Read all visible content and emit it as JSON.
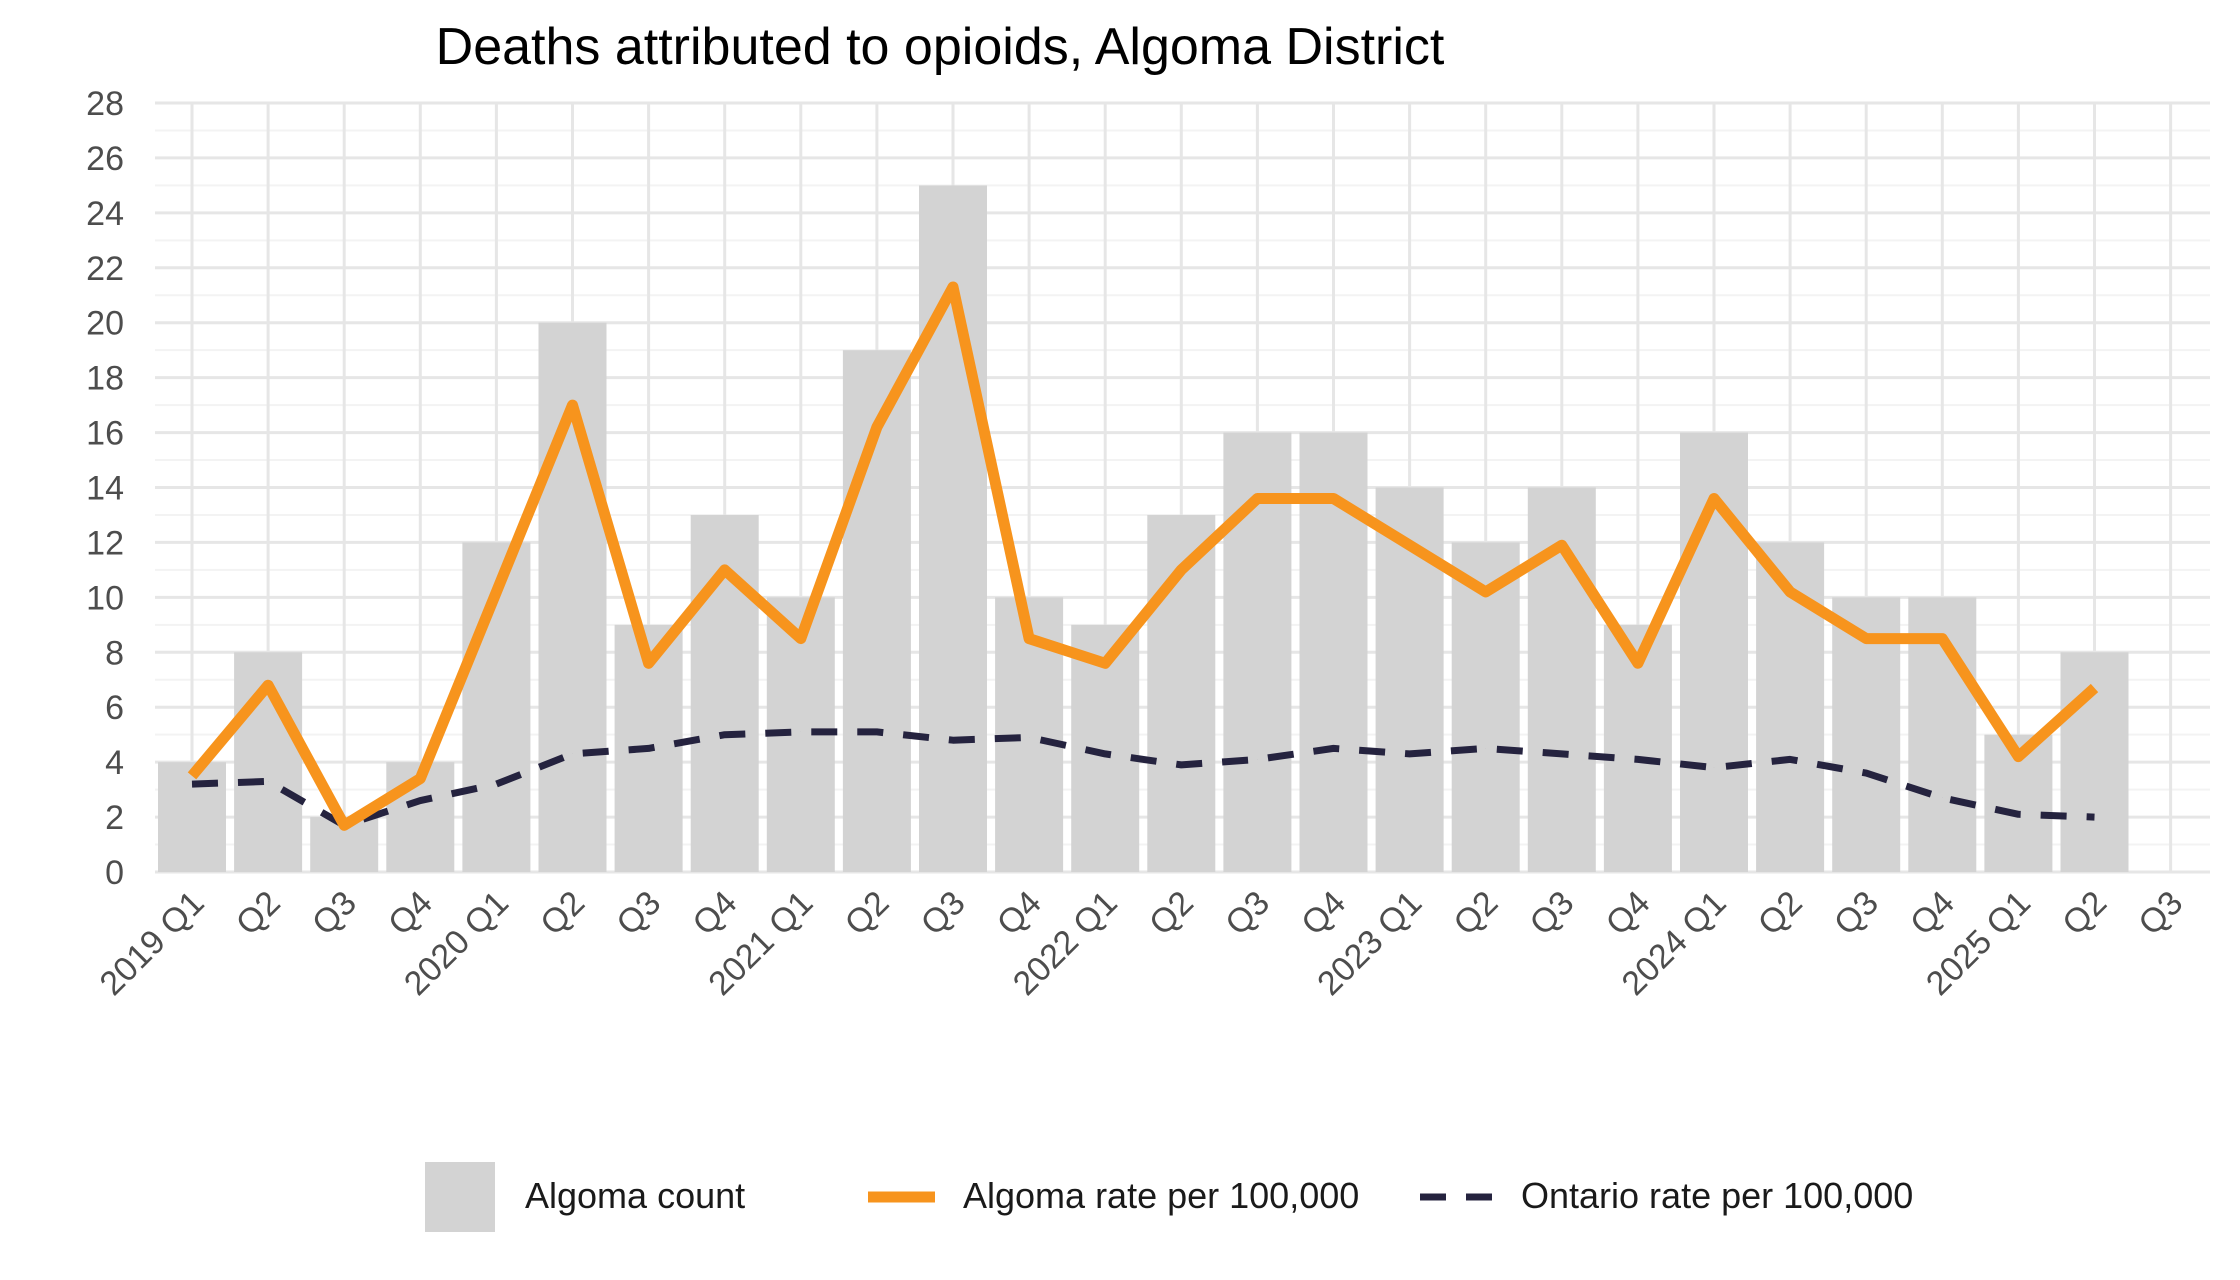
{
  "chart_data": {
    "type": "bar",
    "title": "Deaths attributed to opioids, Algoma District",
    "xlabel": "",
    "ylabel": "",
    "ylim": [
      0,
      28
    ],
    "yticks": [
      0,
      2,
      4,
      6,
      8,
      10,
      12,
      14,
      16,
      18,
      20,
      22,
      24,
      26,
      28
    ],
    "grid": true,
    "legend_position": "bottom",
    "categories": [
      "2019 Q1",
      "Q2",
      "Q3",
      "Q4",
      "2020 Q1",
      "Q2",
      "Q3",
      "Q4",
      "2021 Q1",
      "Q2",
      "Q3",
      "Q4",
      "2022 Q1",
      "Q2",
      "Q3",
      "Q4",
      "2023 Q1",
      "Q2",
      "Q3",
      "Q4",
      "2024 Q1",
      "Q2",
      "Q3",
      "Q4",
      "2025 Q1",
      "Q2",
      "Q3"
    ],
    "series": [
      {
        "name": "Algoma count",
        "kind": "bar",
        "color": "#d3d3d3",
        "values": [
          4,
          8,
          2,
          4,
          12,
          20,
          9,
          13,
          10,
          19,
          25,
          10,
          9,
          13,
          16,
          16,
          14,
          12,
          14,
          9,
          16,
          12,
          10,
          10,
          5,
          8,
          null
        ]
      },
      {
        "name": "Algoma rate per 100,000",
        "kind": "line",
        "style": "solid",
        "color": "#f7941d",
        "values": [
          3.5,
          6.8,
          1.7,
          3.4,
          10.2,
          17.0,
          7.6,
          11.0,
          8.5,
          16.2,
          21.3,
          8.5,
          7.6,
          11.0,
          13.6,
          13.6,
          11.9,
          10.2,
          11.9,
          7.6,
          13.6,
          10.2,
          8.5,
          8.5,
          4.2,
          6.7,
          null
        ]
      },
      {
        "name": "Ontario rate per 100,000",
        "kind": "line",
        "style": "dashed",
        "color": "#25233f",
        "values": [
          3.2,
          3.3,
          1.7,
          2.6,
          3.2,
          4.3,
          4.5,
          5.0,
          5.1,
          5.1,
          4.8,
          4.9,
          4.3,
          3.9,
          4.1,
          4.5,
          4.3,
          4.5,
          4.3,
          4.1,
          3.8,
          4.1,
          3.6,
          2.7,
          2.1,
          2.0,
          null
        ]
      }
    ]
  },
  "legend": {
    "bar_label": "Algoma count",
    "line_label": "Algoma rate per 100,000",
    "dashed_label": "Ontario rate per 100,000"
  }
}
